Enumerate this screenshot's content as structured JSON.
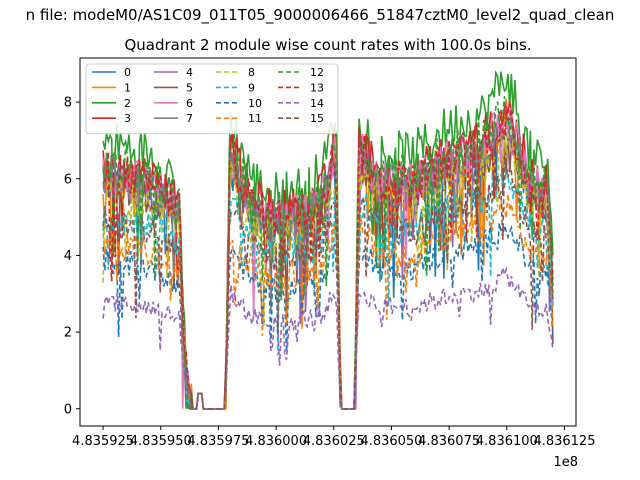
{
  "figure": {
    "suptitle": "n file: modeM0/AS1C09_011T05_9000006466_51847cztM0_level2_quad_clean"
  },
  "chart_data": {
    "type": "line",
    "title": "Quadrant 2 module wise count rates with 100.0s bins.",
    "xlabel": "",
    "ylabel": "",
    "x_offset_label": "1e8",
    "xlim": [
      4.835915,
      4.83613
    ],
    "ylim": [
      -0.45,
      9.15
    ],
    "x_ticks": [
      4.835925,
      4.83595,
      4.835975,
      4.836,
      4.836025,
      4.83605,
      4.836075,
      4.8361,
      4.836125
    ],
    "x_tick_labels": [
      "4.835925",
      "4.835950",
      "4.835975",
      "4.836000",
      "4.836025",
      "4.836050",
      "4.836075",
      "4.836100",
      "4.836125"
    ],
    "y_ticks": [
      0,
      2,
      4,
      6,
      8
    ],
    "y_tick_labels": [
      "0",
      "2",
      "4",
      "6",
      "8"
    ],
    "grid": false,
    "legend_position": "upper-left",
    "legend_columns": 4,
    "series": [
      {
        "name": "0",
        "color": "#1f77b4",
        "style": "solid",
        "level": 5.9
      },
      {
        "name": "1",
        "color": "#ff7f0e",
        "style": "solid",
        "level": 6.1
      },
      {
        "name": "2",
        "color": "#2ca02c",
        "style": "solid",
        "level": 7.0
      },
      {
        "name": "3",
        "color": "#d62728",
        "style": "solid",
        "level": 6.4
      },
      {
        "name": "4",
        "color": "#9467bd",
        "style": "solid",
        "level": 6.0
      },
      {
        "name": "5",
        "color": "#8c564b",
        "style": "solid",
        "level": 5.9
      },
      {
        "name": "6",
        "color": "#e377c2",
        "style": "solid",
        "level": 6.2
      },
      {
        "name": "7",
        "color": "#7f7f7f",
        "style": "solid",
        "level": 6.1
      },
      {
        "name": "8",
        "color": "#bcbd22",
        "style": "dashed",
        "level": 5.6
      },
      {
        "name": "9",
        "color": "#17becf",
        "style": "dashed",
        "level": 5.0
      },
      {
        "name": "10",
        "color": "#1f77b4",
        "style": "dashed",
        "level": 3.9
      },
      {
        "name": "11",
        "color": "#ff7f0e",
        "style": "dashed",
        "level": 4.3
      },
      {
        "name": "12",
        "color": "#2ca02c",
        "style": "dashed",
        "level": 6.4
      },
      {
        "name": "13",
        "color": "#d62728",
        "style": "dashed",
        "level": 6.2
      },
      {
        "name": "14",
        "color": "#9467bd",
        "style": "dashed",
        "level": 2.8
      },
      {
        "name": "15",
        "color": "#8c564b",
        "style": "dashed",
        "level": 4.9
      }
    ],
    "profile": {
      "description_points": [
        [
          4.835925,
          1.0
        ],
        [
          4.835945,
          0.95
        ],
        [
          4.835958,
          0.85
        ],
        [
          4.83596,
          0.3
        ],
        [
          4.835962,
          0.05
        ],
        [
          4.835964,
          0.0
        ],
        [
          4.835967,
          0.07
        ],
        [
          4.83597,
          0.0
        ],
        [
          4.835978,
          0.0
        ],
        [
          4.83598,
          1.08
        ],
        [
          4.83599,
          0.85
        ],
        [
          4.836,
          0.8
        ],
        [
          4.83601,
          0.82
        ],
        [
          4.83602,
          0.88
        ],
        [
          4.836026,
          1.1
        ],
        [
          4.836028,
          0.0
        ],
        [
          4.836034,
          0.0
        ],
        [
          4.836036,
          1.1
        ],
        [
          4.836045,
          0.95
        ],
        [
          4.83606,
          0.95
        ],
        [
          4.836075,
          1.05
        ],
        [
          4.83609,
          1.1
        ],
        [
          4.8361,
          1.25
        ],
        [
          4.83611,
          0.95
        ],
        [
          4.836118,
          0.9
        ],
        [
          4.83612,
          0.5
        ]
      ]
    }
  }
}
